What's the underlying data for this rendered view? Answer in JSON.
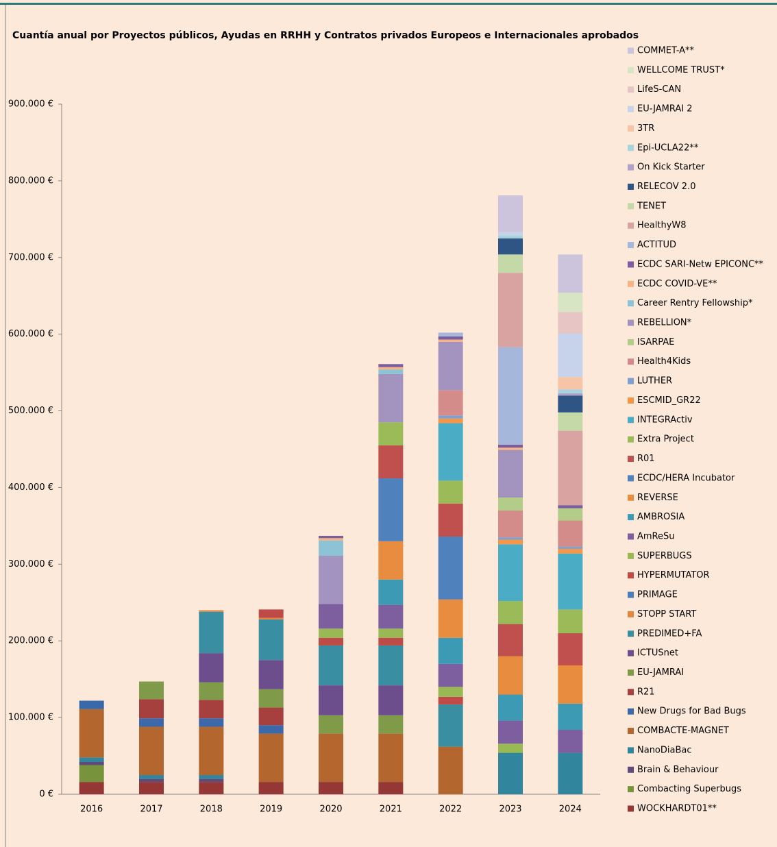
{
  "chart_data": {
    "type": "stacked_bar",
    "title": "Cuantía anual por Proyectos públicos, Ayudas en RRHH y Contratos privados Europeos e Internacionales aprobados",
    "categories": [
      "2016",
      "2017",
      "2018",
      "2019",
      "2020",
      "2021",
      "2022",
      "2023",
      "2024"
    ],
    "ylim": [
      0,
      900000
    ],
    "yticks": [
      {
        "value": 0,
        "label": "0 €"
      },
      {
        "value": 100000,
        "label": "100.000 €"
      },
      {
        "value": 200000,
        "label": "200.000 €"
      },
      {
        "value": 300000,
        "label": "300.000 €"
      },
      {
        "value": 400000,
        "label": "400.000 €"
      },
      {
        "value": 500000,
        "label": "500.000 €"
      },
      {
        "value": 600000,
        "label": "600.000 €"
      },
      {
        "value": 700000,
        "label": "700.000 €"
      },
      {
        "value": 800000,
        "label": "800.000 €"
      },
      {
        "value": 900000,
        "label": "900.000 €"
      }
    ],
    "grid": false,
    "legend": "right",
    "series": [
      {
        "name": "WOCKHARDT01**",
        "color": "#953735",
        "values": [
          16000,
          16000,
          16000,
          16000,
          16000,
          16000,
          null,
          null,
          null
        ]
      },
      {
        "name": "Combacting Superbugs",
        "color": "#77933c",
        "values": [
          22000,
          null,
          null,
          null,
          null,
          null,
          null,
          null,
          null
        ]
      },
      {
        "name": "Brain & Behaviour",
        "color": "#604a7b",
        "values": [
          4000,
          4000,
          4000,
          null,
          null,
          null,
          null,
          null,
          null
        ]
      },
      {
        "name": "NanoDiaBac",
        "color": "#31859c",
        "values": [
          6000,
          5000,
          5000,
          null,
          null,
          null,
          null,
          54000,
          54000
        ]
      },
      {
        "name": "COMBACTE-MAGNET",
        "color": "#b3672f",
        "values": [
          63000,
          63000,
          63000,
          63000,
          63000,
          63000,
          62000,
          null,
          null
        ]
      },
      {
        "name": "New Drugs for Bad Bugs",
        "color": "#3a68a8",
        "values": [
          11000,
          11000,
          11000,
          11000,
          null,
          null,
          null,
          null,
          null
        ]
      },
      {
        "name": "R21",
        "color": "#a5403e",
        "values": [
          null,
          25000,
          24000,
          23000,
          null,
          null,
          null,
          null,
          null
        ]
      },
      {
        "name": "EU-JAMRAI",
        "color": "#7f9a48",
        "values": [
          null,
          23000,
          23000,
          24000,
          24000,
          24000,
          null,
          null,
          null
        ]
      },
      {
        "name": "ICTUSnet",
        "color": "#6d4e8c",
        "values": [
          null,
          null,
          38000,
          38000,
          39000,
          39000,
          null,
          null,
          null
        ]
      },
      {
        "name": "PREDIMED+FA",
        "color": "#3a8ea1",
        "values": [
          null,
          null,
          54000,
          53000,
          52000,
          52000,
          55000,
          null,
          null
        ]
      },
      {
        "name": "STOPP START",
        "color": "#e2883e",
        "values": [
          null,
          null,
          2000,
          2000,
          null,
          null,
          null,
          null,
          null
        ]
      },
      {
        "name": "PRIMAGE",
        "color": "#4a7ebb",
        "values": [
          null,
          null,
          null,
          null,
          null,
          null,
          null,
          null,
          null
        ]
      },
      {
        "name": "HYPERMUTATOR",
        "color": "#be4b48",
        "values": [
          null,
          null,
          null,
          11000,
          10000,
          10000,
          10000,
          null,
          null
        ]
      },
      {
        "name": "SUPERBUGS",
        "color": "#98b954",
        "values": [
          null,
          null,
          null,
          null,
          12000,
          12000,
          13000,
          12000,
          null
        ]
      },
      {
        "name": "AmReSu",
        "color": "#7d5fa0",
        "values": [
          null,
          null,
          null,
          null,
          32000,
          31000,
          30000,
          30000,
          30000
        ]
      },
      {
        "name": "AMBROSIA",
        "color": "#3c9ab5",
        "values": [
          null,
          null,
          null,
          null,
          null,
          33000,
          34000,
          34000,
          34000
        ]
      },
      {
        "name": "REVERSE",
        "color": "#e88c3f",
        "values": [
          null,
          null,
          null,
          null,
          null,
          50000,
          50000,
          50000,
          50000
        ]
      },
      {
        "name": "ECDC/HERA Incubator",
        "color": "#4f81bd",
        "values": [
          null,
          null,
          null,
          null,
          null,
          82000,
          82000,
          null,
          null
        ]
      },
      {
        "name": "R01",
        "color": "#c0504d",
        "values": [
          null,
          null,
          null,
          null,
          null,
          43000,
          43000,
          42000,
          42000
        ]
      },
      {
        "name": "Extra Project",
        "color": "#9bbb59",
        "values": [
          null,
          null,
          null,
          null,
          null,
          30000,
          30000,
          30000,
          31000
        ]
      },
      {
        "name": "INTEGRActiv",
        "color": "#4bacc6",
        "values": [
          null,
          null,
          null,
          null,
          null,
          null,
          75000,
          74000,
          73000
        ]
      },
      {
        "name": "ESCMID_GR22",
        "color": "#f79646",
        "values": [
          null,
          null,
          null,
          null,
          null,
          null,
          6000,
          6000,
          6000
        ]
      },
      {
        "name": "LUTHER",
        "color": "#7f9fcf",
        "values": [
          null,
          null,
          null,
          null,
          null,
          null,
          4000,
          3000,
          3000
        ]
      },
      {
        "name": "Health4Kids",
        "color": "#d48c8a",
        "values": [
          null,
          null,
          null,
          null,
          null,
          null,
          33000,
          35000,
          34000
        ]
      },
      {
        "name": "ISARPAE",
        "color": "#b3cc8a",
        "values": [
          null,
          null,
          null,
          null,
          null,
          null,
          null,
          17000,
          16000
        ]
      },
      {
        "name": "REBELLION*",
        "color": "#a394bf",
        "values": [
          null,
          null,
          null,
          null,
          63000,
          63000,
          63000,
          62000,
          null
        ]
      },
      {
        "name": "Career Rentry Fellowship*",
        "color": "#8cc4d6",
        "values": [
          null,
          null,
          null,
          null,
          20000,
          6000,
          null,
          null,
          null
        ]
      },
      {
        "name": "ECDC COVID-VE**",
        "color": "#f8b384",
        "values": [
          null,
          null,
          null,
          null,
          3000,
          3000,
          3000,
          3000,
          null
        ]
      },
      {
        "name": "ECDC SARI-Netw EPICONC**",
        "color": "#7b5ea0",
        "values": [
          null,
          null,
          null,
          null,
          3000,
          4000,
          4000,
          4000,
          4000
        ]
      },
      {
        "name": "ACTITUD",
        "color": "#a5b8db",
        "values": [
          null,
          null,
          null,
          null,
          null,
          null,
          5000,
          127000,
          null
        ]
      },
      {
        "name": "HealthyW8",
        "color": "#d9a3a2",
        "values": [
          null,
          null,
          null,
          null,
          null,
          null,
          null,
          97000,
          97000
        ]
      },
      {
        "name": "TENET",
        "color": "#c4d8a8",
        "values": [
          null,
          null,
          null,
          null,
          null,
          null,
          null,
          24000,
          24000
        ]
      },
      {
        "name": "RELECOV 2.0",
        "color": "#2f5584",
        "values": [
          null,
          null,
          null,
          null,
          null,
          null,
          null,
          21000,
          22000
        ]
      },
      {
        "name": "On Kick Starter",
        "color": "#b0a3c8",
        "values": [
          null,
          null,
          null,
          null,
          null,
          null,
          null,
          null,
          3000
        ]
      },
      {
        "name": "Epi-UCLA22**",
        "color": "#a8d3e0",
        "values": [
          null,
          null,
          null,
          null,
          null,
          null,
          null,
          4000,
          5000
        ]
      },
      {
        "name": "3TR",
        "color": "#f8c4a8",
        "values": [
          null,
          null,
          null,
          null,
          null,
          null,
          null,
          null,
          16000
        ]
      },
      {
        "name": "EU-JAMRAI 2",
        "color": "#c6d3ea",
        "values": [
          null,
          null,
          null,
          null,
          null,
          null,
          null,
          4000,
          57000
        ]
      },
      {
        "name": "LifeS-CAN",
        "color": "#e6c5c4",
        "values": [
          null,
          null,
          null,
          null,
          null,
          null,
          null,
          null,
          28000
        ]
      },
      {
        "name": "WELLCOME TRUST*",
        "color": "#d7e5c4",
        "values": [
          null,
          null,
          null,
          null,
          null,
          null,
          null,
          null,
          25000
        ]
      },
      {
        "name": "COMMET-A**",
        "color": "#ccc4dc",
        "values": [
          null,
          null,
          null,
          null,
          null,
          null,
          null,
          48000,
          50000
        ]
      }
    ]
  }
}
